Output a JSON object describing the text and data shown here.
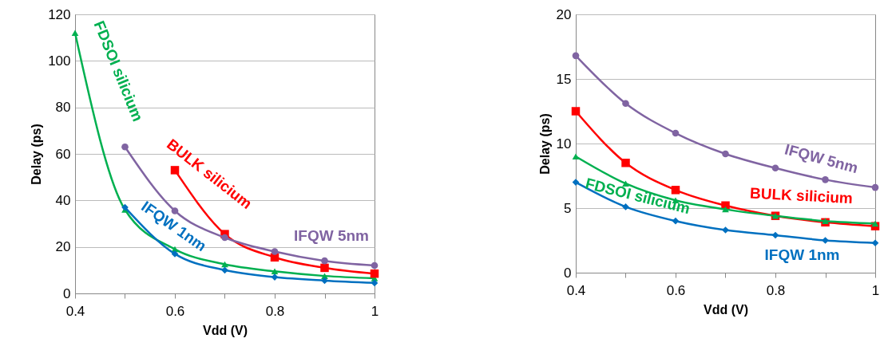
{
  "chart_data": [
    {
      "type": "line",
      "xlabel": "Vdd (V)",
      "ylabel": "Delay (ps)",
      "x": [
        0.4,
        0.5,
        0.6,
        0.7,
        0.8,
        0.9,
        1
      ],
      "xlim": [
        0.4,
        1
      ],
      "xticks": [
        0.4,
        {
          "value": 0.5,
          "label": null
        },
        0.6,
        {
          "value": 0.7,
          "label": null
        },
        0.8,
        {
          "value": 0.9,
          "label": null
        },
        1
      ],
      "ylim": [
        0,
        120
      ],
      "yticks": [
        0,
        20,
        40,
        60,
        80,
        100,
        120
      ],
      "grid": "y",
      "series": [
        {
          "name": "FDSOI silicium",
          "color": "#00b050",
          "marker": "triangle",
          "values": [
            112,
            36,
            19,
            12.5,
            9.5,
            7.5,
            6.5
          ]
        },
        {
          "name": "BULK silicium",
          "color": "#ff0000",
          "marker": "square",
          "x": [
            0.6,
            0.7,
            0.8,
            0.9,
            1
          ],
          "values": [
            53,
            25.5,
            15.5,
            11,
            8.5
          ]
        },
        {
          "name": "IFQW 1nm",
          "color": "#0070c0",
          "marker": "diamond",
          "x": [
            0.5,
            0.6,
            0.7,
            0.8,
            0.9,
            1
          ],
          "values": [
            37,
            17,
            10,
            7,
            5.5,
            4.5
          ]
        },
        {
          "name": "IFQW 5nm",
          "color": "#8064a2",
          "marker": "circle",
          "x": [
            0.5,
            0.6,
            0.7,
            0.8,
            0.9,
            1
          ],
          "values": [
            63,
            35.5,
            24,
            18,
            14,
            12
          ]
        }
      ]
    },
    {
      "type": "line",
      "xlabel": "Vdd (V)",
      "ylabel": "Delay (ps)",
      "x": [
        0.4,
        0.5,
        0.6,
        0.7,
        0.8,
        0.9,
        1
      ],
      "xlim": [
        0.4,
        1
      ],
      "xticks": [
        0.4,
        {
          "value": 0.5,
          "label": null
        },
        0.6,
        {
          "value": 0.7,
          "label": null
        },
        0.8,
        {
          "value": 0.9,
          "label": null
        },
        1
      ],
      "ylim": [
        0,
        20
      ],
      "yticks": [
        0,
        5,
        10,
        15,
        20
      ],
      "grid": "y",
      "series": [
        {
          "name": "IFQW 5nm",
          "color": "#8064a2",
          "marker": "circle",
          "values": [
            16.8,
            13.1,
            10.8,
            9.2,
            8.1,
            7.2,
            6.6
          ]
        },
        {
          "name": "BULK silicium",
          "color": "#ff0000",
          "marker": "square",
          "values": [
            12.5,
            8.5,
            6.4,
            5.2,
            4.4,
            3.9,
            3.6
          ]
        },
        {
          "name": "FDSOI silicium",
          "color": "#00b050",
          "marker": "triangle",
          "values": [
            9.0,
            6.9,
            5.6,
            4.9,
            4.4,
            4.0,
            3.8
          ]
        },
        {
          "name": "IFQW 1nm",
          "color": "#0070c0",
          "marker": "diamond",
          "values": [
            7.0,
            5.1,
            4.0,
            3.3,
            2.9,
            2.5,
            2.3
          ]
        }
      ]
    }
  ]
}
